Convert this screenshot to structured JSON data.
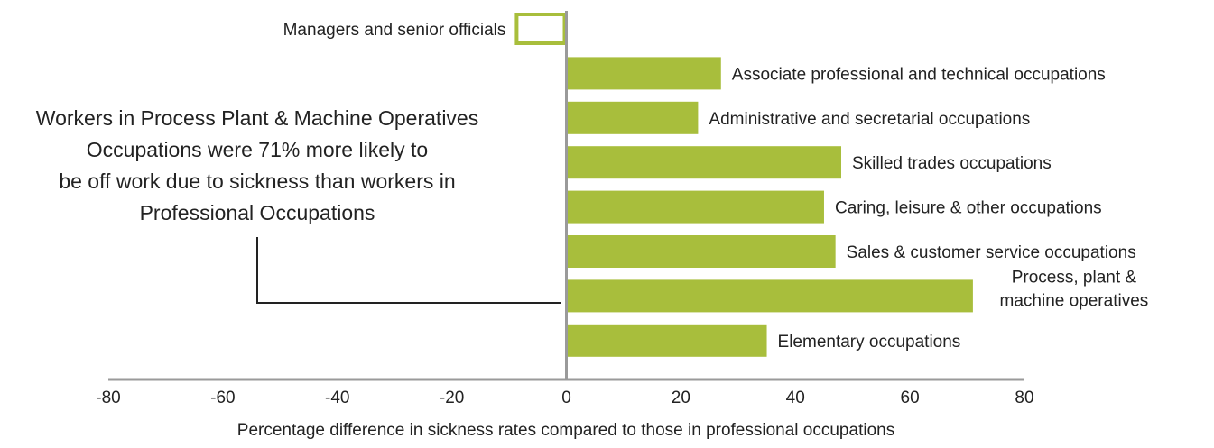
{
  "chart_data": {
    "type": "bar",
    "orientation": "horizontal",
    "title": "",
    "xlabel": "Percentage difference in sickness rates compared to those in professional occupations",
    "ylabel": "",
    "xlim": [
      -80,
      80
    ],
    "xticks": [
      -80,
      -60,
      -40,
      -20,
      0,
      20,
      40,
      60,
      80
    ],
    "categories": [
      "Managers and senior officials",
      "Associate professional and technical occupations",
      "Administrative and secretarial occupations",
      "Skilled trades occupations",
      "Caring, leisure & other occupations",
      "Sales & customer service occupations",
      "Process, plant & machine operatives",
      "Elementary occupations"
    ],
    "values": [
      -9,
      27,
      23,
      48,
      45,
      47,
      71,
      35
    ],
    "label_lines": [
      [
        "Managers and senior officials"
      ],
      [
        "Associate professional and technical occupations"
      ],
      [
        "Administrative and secretarial occupations"
      ],
      [
        "Skilled trades occupations"
      ],
      [
        "Caring, leisure & other occupations"
      ],
      [
        "Sales & customer service occupations"
      ],
      [
        "Process, plant &",
        "machine operatives"
      ],
      [
        "Elementary occupations"
      ]
    ],
    "annotation": {
      "lines": [
        "Workers in Process Plant & Machine Operatives",
        "Occupations were 71% more likely to",
        "be off work due to sickness than workers in",
        "Professional Occupations"
      ],
      "points_to": "Process, plant & machine operatives"
    },
    "colors": {
      "bar": "#a8be3c",
      "axis": "#9a9a9a",
      "text": "#222222",
      "leader": "#222222"
    },
    "grid": false,
    "legend": "none"
  }
}
